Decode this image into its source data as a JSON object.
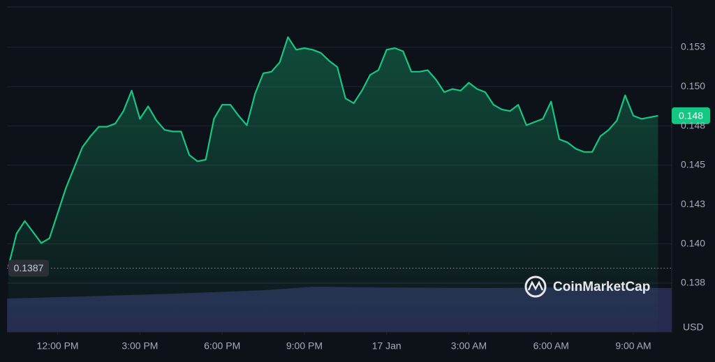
{
  "chart_data": {
    "type": "line",
    "x": [
      10.2,
      10.5,
      10.8,
      11.1,
      11.4,
      11.7,
      12,
      12.3,
      12.6,
      12.9,
      13.2,
      13.5,
      13.8,
      14.1,
      14.4,
      14.7,
      15,
      15.3,
      15.6,
      15.9,
      16.2,
      16.5,
      16.8,
      17.1,
      17.4,
      17.7,
      18,
      18.3,
      18.6,
      18.9,
      19.2,
      19.5,
      19.8,
      20.1,
      20.4,
      20.7,
      21,
      21.3,
      21.6,
      21.9,
      22.2,
      22.5,
      22.8,
      23.1,
      23.4,
      23.7,
      24,
      24.3,
      24.6,
      24.9,
      25.2,
      25.5,
      25.8,
      26.1,
      26.4,
      26.7,
      27,
      27.3,
      27.6,
      27.9,
      28.2,
      28.5,
      28.8,
      29.1,
      29.4,
      29.7,
      30,
      30.3,
      30.6,
      30.9,
      31.2,
      31.5,
      31.8,
      32.1,
      32.4,
      32.7,
      33,
      33.3,
      33.6,
      33.9
    ],
    "values": [
      0.1388,
      0.1409,
      0.1417,
      0.141,
      0.1403,
      0.1406,
      0.1422,
      0.1438,
      0.1451,
      0.1464,
      0.1471,
      0.1477,
      0.1477,
      0.1479,
      0.1487,
      0.15,
      0.1482,
      0.149,
      0.1481,
      0.1475,
      0.1474,
      0.1474,
      0.1459,
      0.1455,
      0.1456,
      0.1482,
      0.1491,
      0.1491,
      0.1484,
      0.1478,
      0.1498,
      0.1511,
      0.1512,
      0.1518,
      0.1534,
      0.1526,
      0.1527,
      0.1526,
      0.1524,
      0.1519,
      0.1515,
      0.1495,
      0.1492,
      0.15,
      0.151,
      0.1513,
      0.1526,
      0.1527,
      0.1525,
      0.1512,
      0.1512,
      0.1513,
      0.1507,
      0.1499,
      0.1501,
      0.15,
      0.1505,
      0.1501,
      0.1499,
      0.1491,
      0.1488,
      0.1487,
      0.1491,
      0.1478,
      0.148,
      0.1482,
      0.1493,
      0.1469,
      0.1467,
      0.1463,
      0.1461,
      0.1461,
      0.1471,
      0.1475,
      0.1481,
      0.1497,
      0.1484,
      0.1482,
      0.1483,
      0.1484
    ],
    "color": "#16c784",
    "xlim": [
      10.15,
      34.4
    ],
    "ylim": [
      0.13464,
      0.15532
    ],
    "xticks": [
      {
        "value": 12,
        "label": "12:00 PM"
      },
      {
        "value": 15,
        "label": "3:00 PM"
      },
      {
        "value": 18,
        "label": "6:00 PM"
      },
      {
        "value": 21,
        "label": "9:00 PM"
      },
      {
        "value": 24,
        "label": "17 Jan"
      },
      {
        "value": 27,
        "label": "3:00 AM"
      },
      {
        "value": 30,
        "label": "6:00 AM"
      },
      {
        "value": 33,
        "label": "9:00 AM"
      }
    ],
    "yticks": [
      {
        "value": 0.13775,
        "label": "0.138"
      },
      {
        "value": 0.14025,
        "label": "0.140"
      },
      {
        "value": 0.14275,
        "label": "0.143"
      },
      {
        "value": 0.14525,
        "label": "0.145"
      },
      {
        "value": 0.14775,
        "label": "0.148"
      },
      {
        "value": 0.15025,
        "label": "0.150"
      },
      {
        "value": 0.15275,
        "label": "0.153"
      }
    ],
    "grid": true,
    "open_price": 0.1387,
    "last_price": {
      "value": 0.1484,
      "label": "0.148"
    },
    "currency": "USD",
    "watermark": "CoinMarketCap"
  }
}
